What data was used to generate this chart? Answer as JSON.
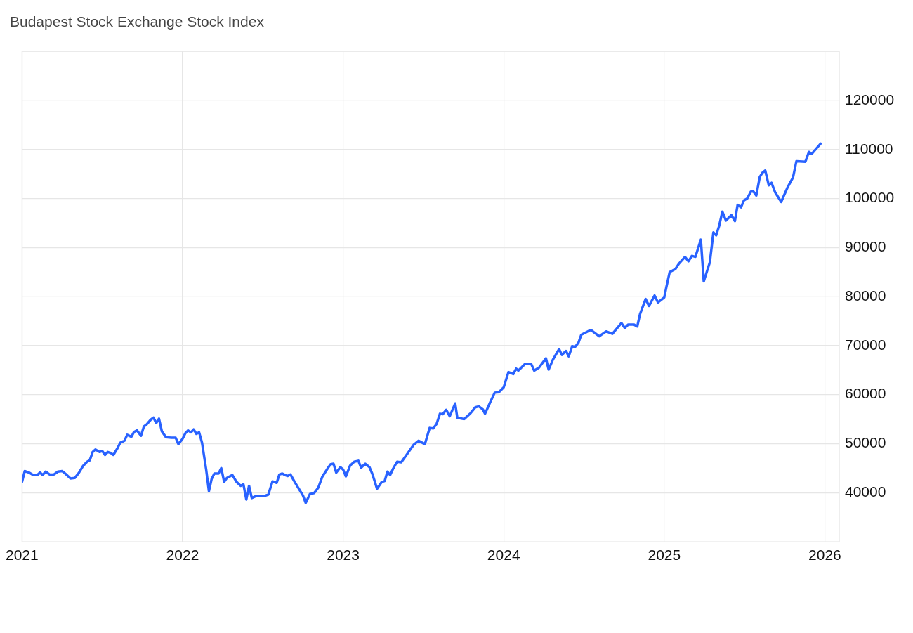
{
  "chart_data": {
    "type": "line",
    "title": "Budapest Stock Exchange Stock Index",
    "series": [
      {
        "color": "#2962ff",
        "x": [
          2021.0,
          2021.017,
          2021.043,
          2021.069,
          2021.095,
          2021.112,
          2021.129,
          2021.147,
          2021.172,
          2021.198,
          2021.224,
          2021.25,
          2021.276,
          2021.302,
          2021.328,
          2021.353,
          2021.379,
          2021.405,
          2021.422,
          2021.44,
          2021.457,
          2021.483,
          2021.5,
          2021.517,
          2021.534,
          2021.552,
          2021.569,
          2021.595,
          2021.612,
          2021.638,
          2021.655,
          2021.681,
          2021.698,
          2021.716,
          2021.741,
          2021.759,
          2021.776,
          2021.802,
          2021.819,
          2021.836,
          2021.853,
          2021.871,
          2021.897,
          2021.931,
          2021.957,
          2021.974,
          2022.0,
          2022.017,
          2022.034,
          2022.052,
          2022.069,
          2022.086,
          2022.103,
          2022.121,
          2022.147,
          2022.164,
          2022.181,
          2022.198,
          2022.224,
          2022.241,
          2022.259,
          2022.276,
          2022.31,
          2022.336,
          2022.362,
          2022.379,
          2022.397,
          2022.414,
          2022.431,
          2022.457,
          2022.491,
          2022.517,
          2022.534,
          2022.56,
          2022.586,
          2022.603,
          2022.621,
          2022.638,
          2022.655,
          2022.672,
          2022.698,
          2022.724,
          2022.75,
          2022.767,
          2022.793,
          2022.819,
          2022.845,
          2022.871,
          2022.905,
          2022.922,
          2022.94,
          2022.957,
          2022.983,
          2023.0,
          2023.017,
          2023.043,
          2023.069,
          2023.095,
          2023.112,
          2023.138,
          2023.164,
          2023.181,
          2023.198,
          2023.211,
          2023.241,
          2023.259,
          2023.276,
          2023.293,
          2023.31,
          2023.336,
          2023.362,
          2023.397,
          2023.44,
          2023.47,
          2023.509,
          2023.539,
          2023.56,
          2023.582,
          2023.603,
          2023.62,
          2023.642,
          2023.664,
          2023.698,
          2023.711,
          2023.754,
          2023.793,
          2023.823,
          2023.845,
          2023.87,
          2023.884,
          2023.914,
          2023.944,
          2023.97,
          2024.0,
          2024.03,
          2024.06,
          2024.078,
          2024.091,
          2024.134,
          2024.172,
          2024.19,
          2024.22,
          2024.263,
          2024.28,
          2024.306,
          2024.345,
          2024.362,
          2024.388,
          2024.405,
          2024.427,
          2024.444,
          2024.466,
          2024.483,
          2024.543,
          2024.595,
          2024.638,
          2024.677,
          2024.733,
          2024.754,
          2024.776,
          2024.81,
          2024.832,
          2024.849,
          2024.884,
          2024.905,
          2024.94,
          2024.961,
          2025.0,
          2025.013,
          2025.034,
          2025.069,
          2025.091,
          2025.129,
          2025.151,
          2025.172,
          2025.194,
          2025.228,
          2025.246,
          2025.284,
          2025.306,
          2025.323,
          2025.341,
          2025.362,
          2025.384,
          2025.418,
          2025.44,
          2025.457,
          2025.478,
          2025.496,
          2025.517,
          2025.539,
          2025.556,
          2025.573,
          2025.595,
          2025.612,
          2025.629,
          2025.651,
          2025.668,
          2025.69,
          2025.728,
          2025.767,
          2025.802,
          2025.823,
          2025.879,
          2025.901,
          2025.918,
          2025.974
        ],
        "values": [
          42200,
          44400,
          44100,
          43600,
          43600,
          44100,
          43600,
          44300,
          43700,
          43700,
          44300,
          44400,
          43700,
          42900,
          43000,
          44000,
          45400,
          46300,
          46600,
          48300,
          48800,
          48300,
          48500,
          47700,
          48300,
          48100,
          47700,
          49100,
          50200,
          50600,
          51800,
          51400,
          52400,
          52700,
          51600,
          53500,
          53900,
          54900,
          55300,
          54200,
          55100,
          52500,
          51300,
          51200,
          51200,
          49900,
          51000,
          52100,
          52700,
          52300,
          52900,
          52000,
          52300,
          50200,
          44700,
          40300,
          42800,
          43900,
          43900,
          45000,
          42200,
          43000,
          43600,
          42200,
          41400,
          41700,
          38600,
          41400,
          38900,
          39300,
          39300,
          39400,
          39600,
          42300,
          42000,
          43700,
          43900,
          43600,
          43400,
          43700,
          42200,
          40800,
          39400,
          37900,
          39700,
          39900,
          41000,
          43300,
          45000,
          45800,
          45900,
          44100,
          45200,
          44700,
          43300,
          45500,
          46300,
          46500,
          45100,
          45900,
          45200,
          43900,
          42200,
          40800,
          42200,
          42400,
          44300,
          43600,
          44800,
          46300,
          46200,
          47800,
          49800,
          50600,
          49900,
          53200,
          53100,
          54000,
          56100,
          56000,
          56900,
          55600,
          58200,
          55300,
          55000,
          56200,
          57400,
          57600,
          57000,
          56100,
          58300,
          60400,
          60500,
          61500,
          64600,
          64200,
          65300,
          64900,
          66300,
          66200,
          64900,
          65500,
          67400,
          65100,
          67100,
          69300,
          68100,
          68900,
          67800,
          69900,
          69700,
          70600,
          72200,
          73200,
          71900,
          72900,
          72400,
          74600,
          73600,
          74300,
          74300,
          73900,
          76400,
          79500,
          78100,
          80200,
          78800,
          79800,
          81900,
          85000,
          85600,
          86700,
          88100,
          87200,
          88300,
          88100,
          91600,
          83100,
          87000,
          93100,
          92500,
          94300,
          97300,
          95500,
          96600,
          95400,
          98700,
          98200,
          99600,
          100000,
          101400,
          101400,
          100600,
          104400,
          105300,
          105700,
          102700,
          103200,
          101300,
          99300,
          102200,
          104300,
          107600,
          107500,
          109500,
          109100,
          111200
        ]
      }
    ],
    "xlim": [
      2021,
      2026.09
    ],
    "xticks": [
      2021,
      2022,
      2023,
      2024,
      2025,
      2026
    ],
    "ylim": [
      30000,
      130000
    ],
    "yticks": [
      40000,
      50000,
      60000,
      70000,
      80000,
      90000,
      100000,
      110000,
      120000
    ],
    "grid": true,
    "legend": false,
    "marker": "none",
    "line_style": "solid"
  }
}
